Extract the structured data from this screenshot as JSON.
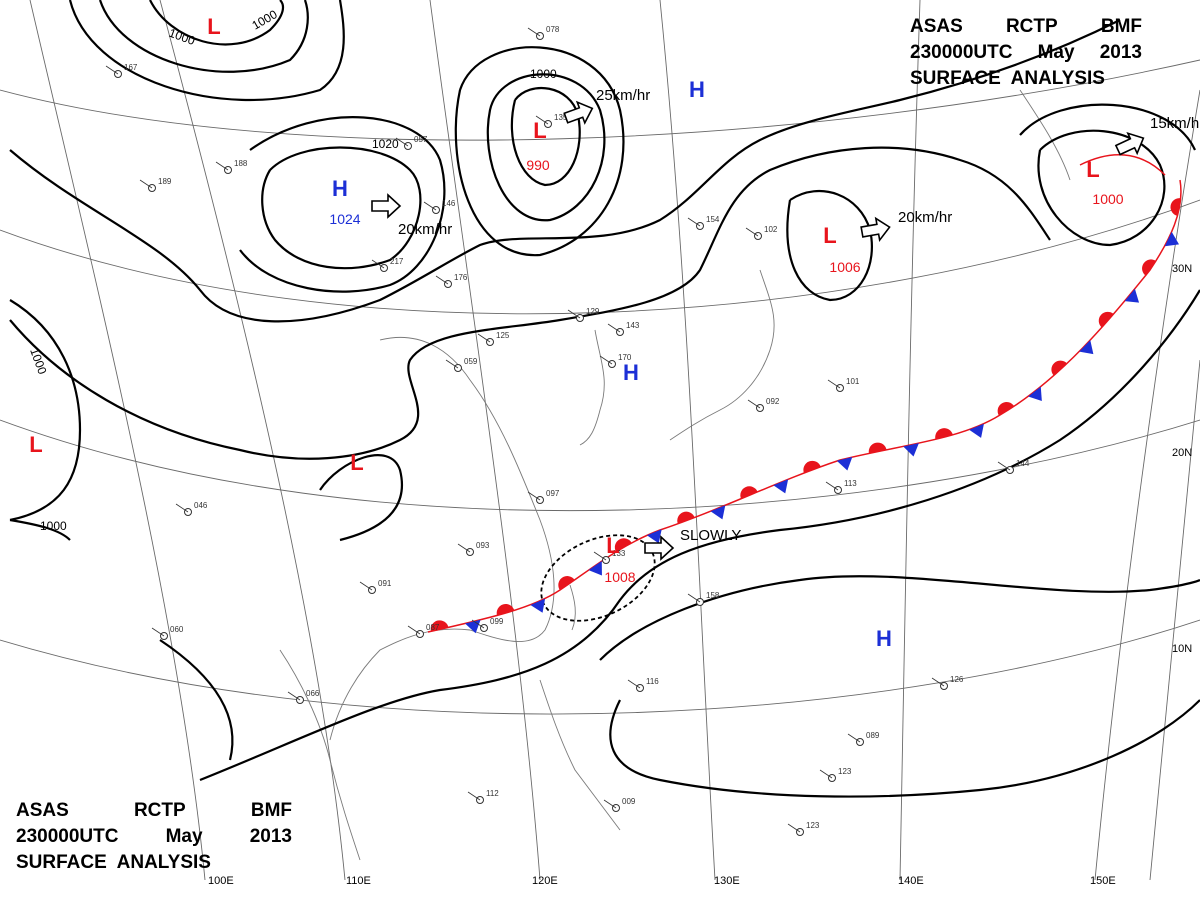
{
  "chart": {
    "title_top": {
      "line1": [
        "ASAS",
        "RCTP",
        "BMF"
      ],
      "line2": [
        "230000UTC",
        "May",
        "2013"
      ],
      "line3": "SURFACE  ANALYSIS"
    },
    "title_bottom": {
      "line1": [
        "ASAS",
        "RCTP",
        "BMF"
      ],
      "line2": [
        "230000UTC",
        "May",
        "2013"
      ],
      "line3": "SURFACE  ANALYSIS"
    }
  },
  "colors": {
    "low": "#e8141c",
    "high": "#1c2fd6",
    "warm_front": "#e8141c",
    "cold_front": "#1c2fd6",
    "isobar": "#000000",
    "grid": "#555555"
  },
  "pressure_systems": [
    {
      "type": "L",
      "value": "990",
      "color": "#e8141c"
    },
    {
      "type": "H",
      "value": "1024",
      "color": "#1c2fd6"
    },
    {
      "type": "L",
      "value": "1006",
      "color": "#e8141c"
    },
    {
      "type": "L",
      "value": "1000",
      "color": "#e8141c"
    },
    {
      "type": "L",
      "value": "1008",
      "color": "#e8141c"
    },
    {
      "type": "H",
      "value": "",
      "color": "#1c2fd6"
    },
    {
      "type": "H",
      "value": "",
      "color": "#1c2fd6"
    },
    {
      "type": "H",
      "value": "",
      "color": "#1c2fd6"
    },
    {
      "type": "L",
      "value": "",
      "color": "#e8141c"
    },
    {
      "type": "L",
      "value": "",
      "color": "#e8141c"
    },
    {
      "type": "L",
      "value": "",
      "color": "#e8141c"
    }
  ],
  "movements": [
    "25km/hr",
    "20km/hr",
    "20km/hr",
    "15km/hr",
    "SLOWLY"
  ],
  "isobar_labels": [
    "1000",
    "1000",
    "1000",
    "1020",
    "1000",
    "1000"
  ],
  "longitude_labels": [
    "100E",
    "110E",
    "120E",
    "130E",
    "140E",
    "150E"
  ],
  "latitude_labels": [
    "30N",
    "20N",
    "10N"
  ],
  "front": {
    "type": "stationary",
    "segments": 2
  },
  "disturbance": {
    "shape": "dotted-ellipse"
  },
  "stations": [
    "078",
    "129",
    "087",
    "091",
    "097",
    "113",
    "144",
    "101",
    "092",
    "125",
    "093",
    "099",
    "116",
    "158",
    "112",
    "126",
    "089",
    "123",
    "133",
    "060",
    "046",
    "059",
    "143",
    "170",
    "146",
    "217",
    "176",
    "057",
    "188",
    "189",
    "167",
    "135",
    "154",
    "102",
    "123",
    "066",
    "009"
  ]
}
